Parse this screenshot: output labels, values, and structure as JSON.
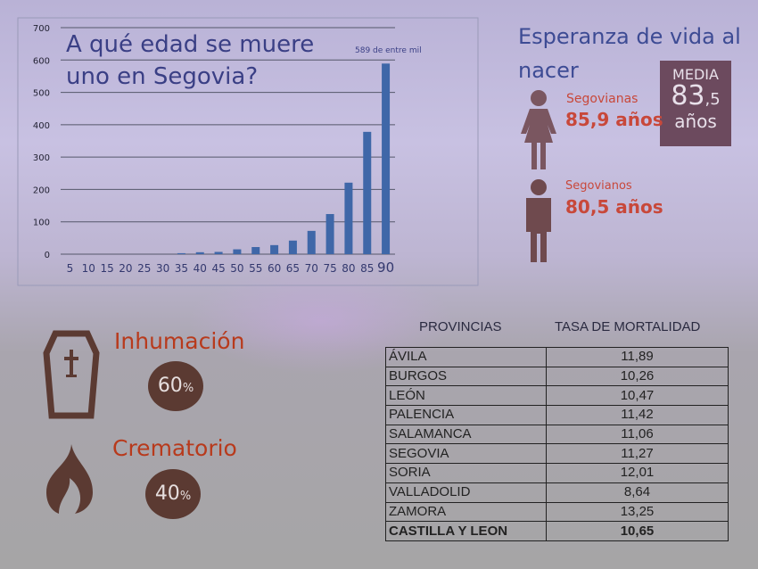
{
  "chart_data": {
    "type": "bar",
    "title": "A qué edad se muere uno en Segovia?",
    "annotation": "589 de entre mil",
    "categories": [
      "5",
      "10",
      "15",
      "20",
      "25",
      "30",
      "35",
      "40",
      "45",
      "50",
      "55",
      "60",
      "65",
      "70",
      "75",
      "80",
      "85",
      "90"
    ],
    "values": [
      0,
      0,
      0,
      0,
      0,
      0,
      3,
      6,
      7,
      15,
      22,
      28,
      42,
      72,
      124,
      221,
      378,
      589
    ],
    "yticks": [
      "0",
      "100",
      "200",
      "300",
      "400",
      "500",
      "600",
      "700"
    ],
    "ylim": [
      0,
      700
    ],
    "xlabel": "",
    "ylabel": "",
    "grid": true,
    "bar_color": "#3f67a8"
  },
  "life": {
    "title": "Esperanza de vida al nacer",
    "women_label": "Segovianas",
    "women_value": "85,9 años",
    "men_label": "Segovianos",
    "men_value": "80,5 años",
    "media_label": "MEDIA",
    "media_int": "83",
    "media_dec": ",5",
    "media_unit": "años"
  },
  "burial": {
    "inhum_label": "Inhumación",
    "inhum_pct": "60",
    "crem_label": "Crematorio",
    "crem_pct": "40",
    "pct_sign": "%"
  },
  "table": {
    "headers": [
      "PROVINCIAS",
      "TASA DE MORTALIDAD"
    ],
    "rows": [
      [
        "ÁVILA",
        "11,89"
      ],
      [
        "BURGOS",
        "10,26"
      ],
      [
        "LEÓN",
        "10,47"
      ],
      [
        "PALENCIA",
        "11,42"
      ],
      [
        "SALAMANCA",
        "11,06"
      ],
      [
        "SEGOVIA",
        "11,27"
      ],
      [
        "SORIA",
        "12,01"
      ],
      [
        "VALLADOLID",
        "8,64"
      ],
      [
        "ZAMORA",
        "13,25"
      ],
      [
        "CASTILLA Y LEON",
        "10,65"
      ]
    ]
  },
  "colors": {
    "accent": "#c8483a",
    "brown": "#5b3a32",
    "media": "#6c4a5e"
  }
}
